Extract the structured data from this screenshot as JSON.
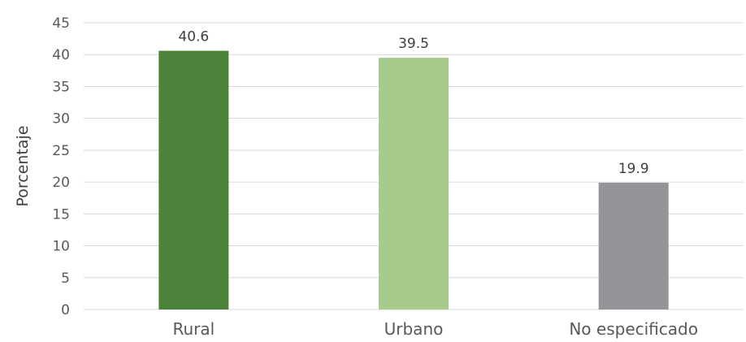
{
  "chart_data": {
    "type": "bar",
    "title": "",
    "xlabel": "",
    "ylabel": "Porcentaje",
    "categories": [
      "Rural",
      "Urbano",
      "No especificado"
    ],
    "values": [
      40.6,
      39.5,
      19.9
    ],
    "value_labels": [
      "40.6",
      "39.5",
      "19.9"
    ],
    "colors": [
      "#4a8339",
      "#a6cb8c",
      "#939598"
    ],
    "ylim": [
      0,
      45
    ],
    "yticks": [
      0,
      5,
      10,
      15,
      20,
      25,
      30,
      35,
      40,
      45
    ],
    "grid": true,
    "legend": "none"
  }
}
